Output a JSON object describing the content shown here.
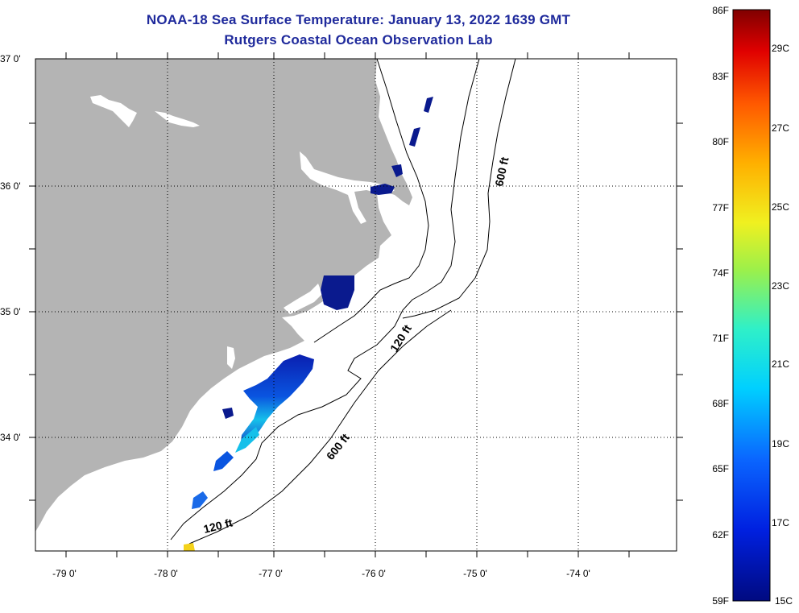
{
  "title": {
    "line1": "NOAA-18 Sea Surface Temperature:  January 13, 2022 1639 GMT",
    "line2": "Rutgers Coastal Ocean Observation Lab"
  },
  "axes": {
    "lat_labels": [
      "37 0'",
      "36 0'",
      "35 0'",
      "34 0'"
    ],
    "lon_labels": [
      "-79 0'",
      "-78 0'",
      "-77 0'",
      "-76 0'",
      "-75 0'",
      "-74 0'"
    ]
  },
  "depth_labels": [
    "600 ft",
    "120 ft",
    "600 ft",
    "120 ft"
  ],
  "colorbar": {
    "fahrenheit": [
      "86F",
      "83F",
      "80F",
      "77F",
      "74F",
      "71F",
      "68F",
      "65F",
      "62F",
      "59F"
    ],
    "celsius": [
      "29C",
      "27C",
      "25C",
      "23C",
      "21C",
      "19C",
      "17C",
      "15C"
    ]
  },
  "colors": {
    "land": "#b4b4b4",
    "title": "#1f2a9c",
    "sst_cold": "#000f8a",
    "sst_mid": "#16c0ea",
    "sst_warm": "#f4d21a"
  }
}
